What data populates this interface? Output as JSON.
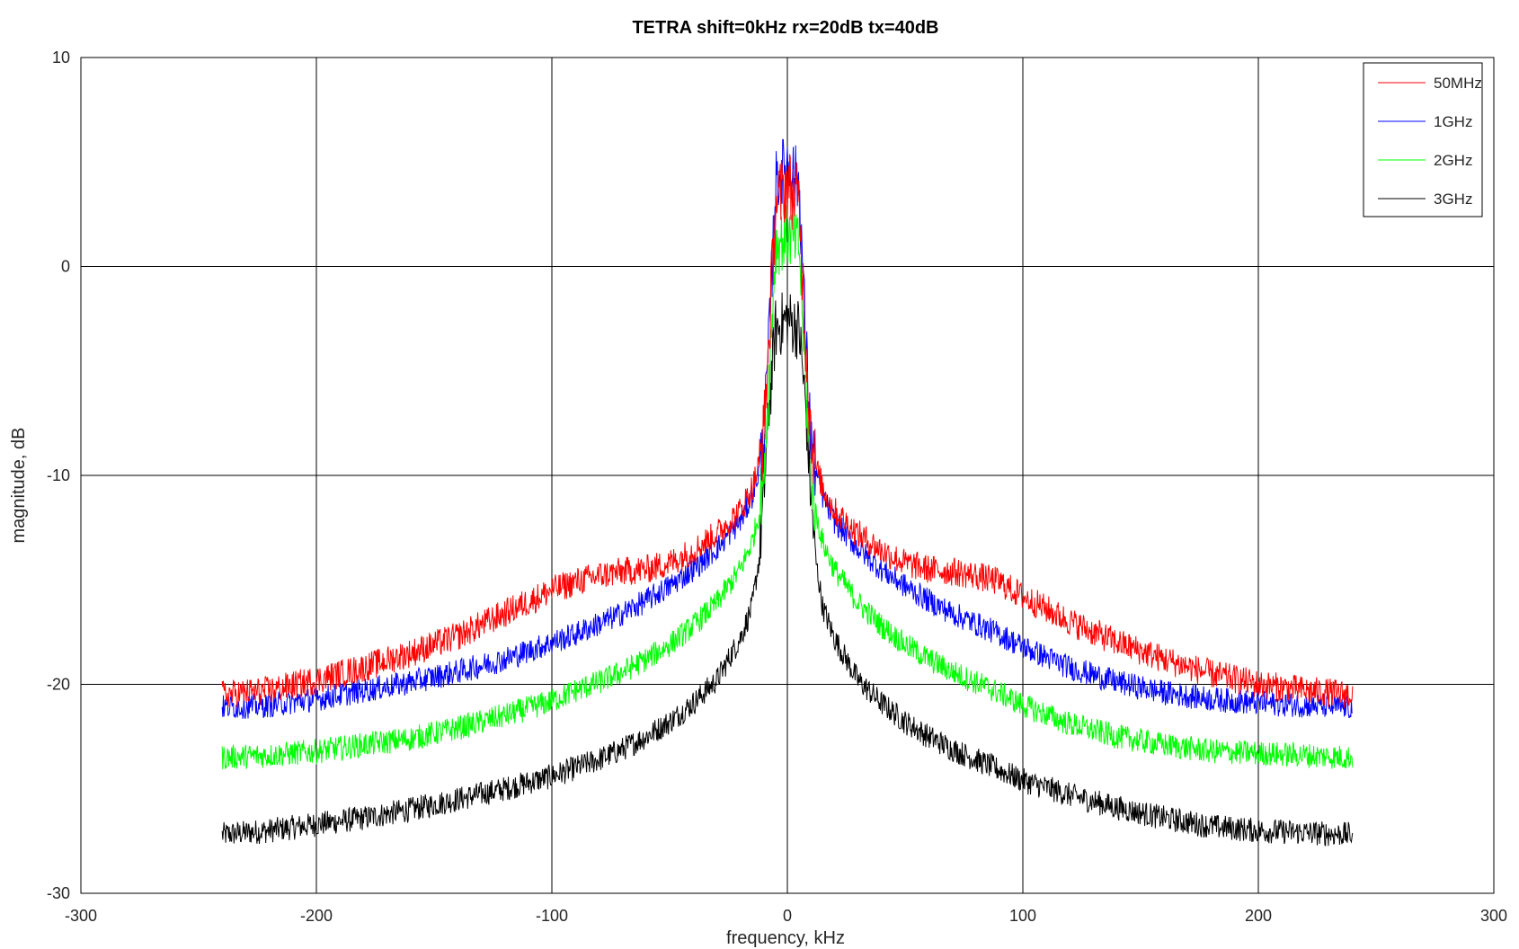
{
  "chart_data": {
    "type": "line",
    "title": "TETRA shift=0kHz rx=20dB tx=40dB",
    "xlabel": "frequency, kHz",
    "ylabel": "magnitude, dB",
    "xlim": [
      -300,
      300
    ],
    "ylim": [
      -30,
      10
    ],
    "xticks": [
      -300,
      -200,
      -100,
      0,
      100,
      200,
      300
    ],
    "yticks": [
      -30,
      -20,
      -10,
      0,
      10
    ],
    "xtick_labels": [
      "-300",
      "-200",
      "-100",
      "0",
      "100",
      "200",
      "300"
    ],
    "ytick_labels": [
      "-30",
      "-20",
      "-10",
      "0",
      "10"
    ],
    "grid": true,
    "legend_position": "top-right",
    "series": [
      {
        "name": "50MHz",
        "color": "#ff0000",
        "x": [
          -240,
          -220,
          -200,
          -180,
          -160,
          -140,
          -120,
          -100,
          -90,
          -80,
          -70,
          -60,
          -50,
          -40,
          -30,
          -20,
          -15,
          -12,
          -10,
          -8,
          -5,
          0,
          5,
          8,
          10,
          12,
          15,
          20,
          30,
          40,
          50,
          60,
          70,
          80,
          90,
          100,
          120,
          140,
          160,
          180,
          200,
          220,
          240
        ],
        "y": [
          -20.5,
          -20.3,
          -19.8,
          -19.2,
          -18.5,
          -17.7,
          -16.6,
          -15.5,
          -15.1,
          -14.8,
          -14.6,
          -14.5,
          -14.2,
          -13.6,
          -12.8,
          -11.7,
          -10.6,
          -9.5,
          -8.0,
          -4.0,
          3.0,
          4.0,
          3.0,
          -4.0,
          -8.0,
          -9.5,
          -10.6,
          -11.7,
          -12.8,
          -13.6,
          -14.2,
          -14.5,
          -14.6,
          -14.8,
          -15.1,
          -15.8,
          -17.0,
          -18.0,
          -18.8,
          -19.5,
          -20.0,
          -20.3,
          -20.5
        ],
        "noise": 0.7
      },
      {
        "name": "1GHz",
        "color": "#0000ff",
        "x": [
          -240,
          -220,
          -200,
          -180,
          -160,
          -140,
          -120,
          -100,
          -90,
          -80,
          -70,
          -60,
          -50,
          -40,
          -30,
          -20,
          -15,
          -12,
          -10,
          -8,
          -5,
          0,
          5,
          8,
          10,
          12,
          15,
          20,
          30,
          40,
          50,
          60,
          70,
          80,
          90,
          100,
          120,
          140,
          160,
          180,
          200,
          220,
          240
        ],
        "y": [
          -21.1,
          -21.0,
          -20.7,
          -20.3,
          -19.9,
          -19.4,
          -18.8,
          -18.0,
          -17.6,
          -17.1,
          -16.6,
          -16.0,
          -15.3,
          -14.5,
          -13.5,
          -12.2,
          -11.0,
          -9.8,
          -8.2,
          -4.0,
          4.0,
          5.0,
          4.0,
          -4.0,
          -8.2,
          -9.8,
          -11.0,
          -12.2,
          -13.5,
          -14.5,
          -15.3,
          -16.0,
          -16.6,
          -17.1,
          -17.6,
          -18.2,
          -19.2,
          -19.9,
          -20.4,
          -20.7,
          -20.9,
          -21.0,
          -21.1
        ],
        "noise": 0.6
      },
      {
        "name": "2GHz",
        "color": "#00ff00",
        "x": [
          -240,
          -220,
          -200,
          -180,
          -160,
          -140,
          -120,
          -100,
          -90,
          -80,
          -70,
          -60,
          -50,
          -40,
          -30,
          -20,
          -15,
          -12,
          -10,
          -8,
          -5,
          0,
          5,
          8,
          10,
          12,
          15,
          20,
          30,
          40,
          50,
          60,
          70,
          80,
          90,
          100,
          120,
          140,
          160,
          180,
          200,
          220,
          240
        ],
        "y": [
          -23.5,
          -23.4,
          -23.2,
          -22.9,
          -22.6,
          -22.1,
          -21.5,
          -20.8,
          -20.3,
          -19.9,
          -19.4,
          -18.8,
          -18.1,
          -17.2,
          -16.1,
          -14.5,
          -13.2,
          -11.8,
          -9.8,
          -6.0,
          1.0,
          1.5,
          1.0,
          -6.0,
          -9.8,
          -11.8,
          -13.2,
          -14.5,
          -16.1,
          -17.2,
          -18.1,
          -18.8,
          -19.4,
          -19.9,
          -20.4,
          -21.0,
          -21.9,
          -22.5,
          -22.9,
          -23.2,
          -23.3,
          -23.4,
          -23.5
        ],
        "noise": 0.6
      },
      {
        "name": "3GHz",
        "color": "#000000",
        "x": [
          -240,
          -220,
          -200,
          -180,
          -160,
          -140,
          -120,
          -100,
          -90,
          -80,
          -70,
          -60,
          -50,
          -40,
          -30,
          -20,
          -15,
          -12,
          -10,
          -8,
          -5,
          0,
          5,
          8,
          10,
          12,
          15,
          20,
          30,
          40,
          50,
          60,
          70,
          80,
          90,
          100,
          120,
          140,
          160,
          180,
          200,
          220,
          240
        ],
        "y": [
          -27.2,
          -27.0,
          -26.7,
          -26.4,
          -26.0,
          -25.5,
          -25.0,
          -24.4,
          -24.0,
          -23.6,
          -23.1,
          -22.5,
          -21.8,
          -20.9,
          -19.8,
          -17.8,
          -16.3,
          -14.0,
          -11.0,
          -7.0,
          -3.0,
          -2.5,
          -3.0,
          -7.0,
          -11.0,
          -14.0,
          -16.3,
          -17.8,
          -19.8,
          -20.9,
          -21.8,
          -22.5,
          -23.1,
          -23.6,
          -24.1,
          -24.6,
          -25.3,
          -25.9,
          -26.4,
          -26.8,
          -27.0,
          -27.1,
          -27.2
        ],
        "noise": 0.6
      }
    ]
  },
  "colors": {
    "grid": "#000000",
    "frame": "#000000",
    "background": "#ffffff"
  }
}
